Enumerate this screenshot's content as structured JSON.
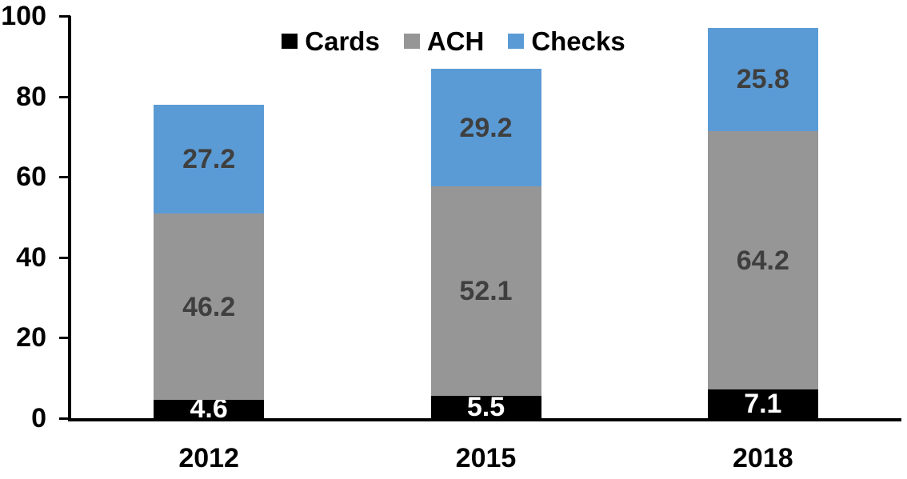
{
  "chart_data": {
    "type": "bar",
    "stacked": true,
    "orientation": "vertical",
    "title": "",
    "xlabel": "",
    "ylabel": "",
    "categories": [
      "2012",
      "2015",
      "2018"
    ],
    "series": [
      {
        "name": "Cards",
        "color": "#000000",
        "label_color": "#FFFFFF",
        "values": [
          4.6,
          5.5,
          7.1
        ]
      },
      {
        "name": "ACH",
        "color": "#969696",
        "label_color": "#3F3F3F",
        "values": [
          46.2,
          52.1,
          64.2
        ]
      },
      {
        "name": "Checks",
        "color": "#5B9BD5",
        "label_color": "#3F3F3F",
        "values": [
          27.2,
          29.2,
          25.8
        ]
      }
    ],
    "data_labels": true,
    "ylim": [
      0,
      100
    ],
    "yticks": [
      0,
      20,
      40,
      60,
      80,
      100
    ],
    "grid": false,
    "legend_position": "top-center",
    "axis_color": "#000000",
    "text_color": "#000000",
    "background_color": "#FFFFFF"
  }
}
